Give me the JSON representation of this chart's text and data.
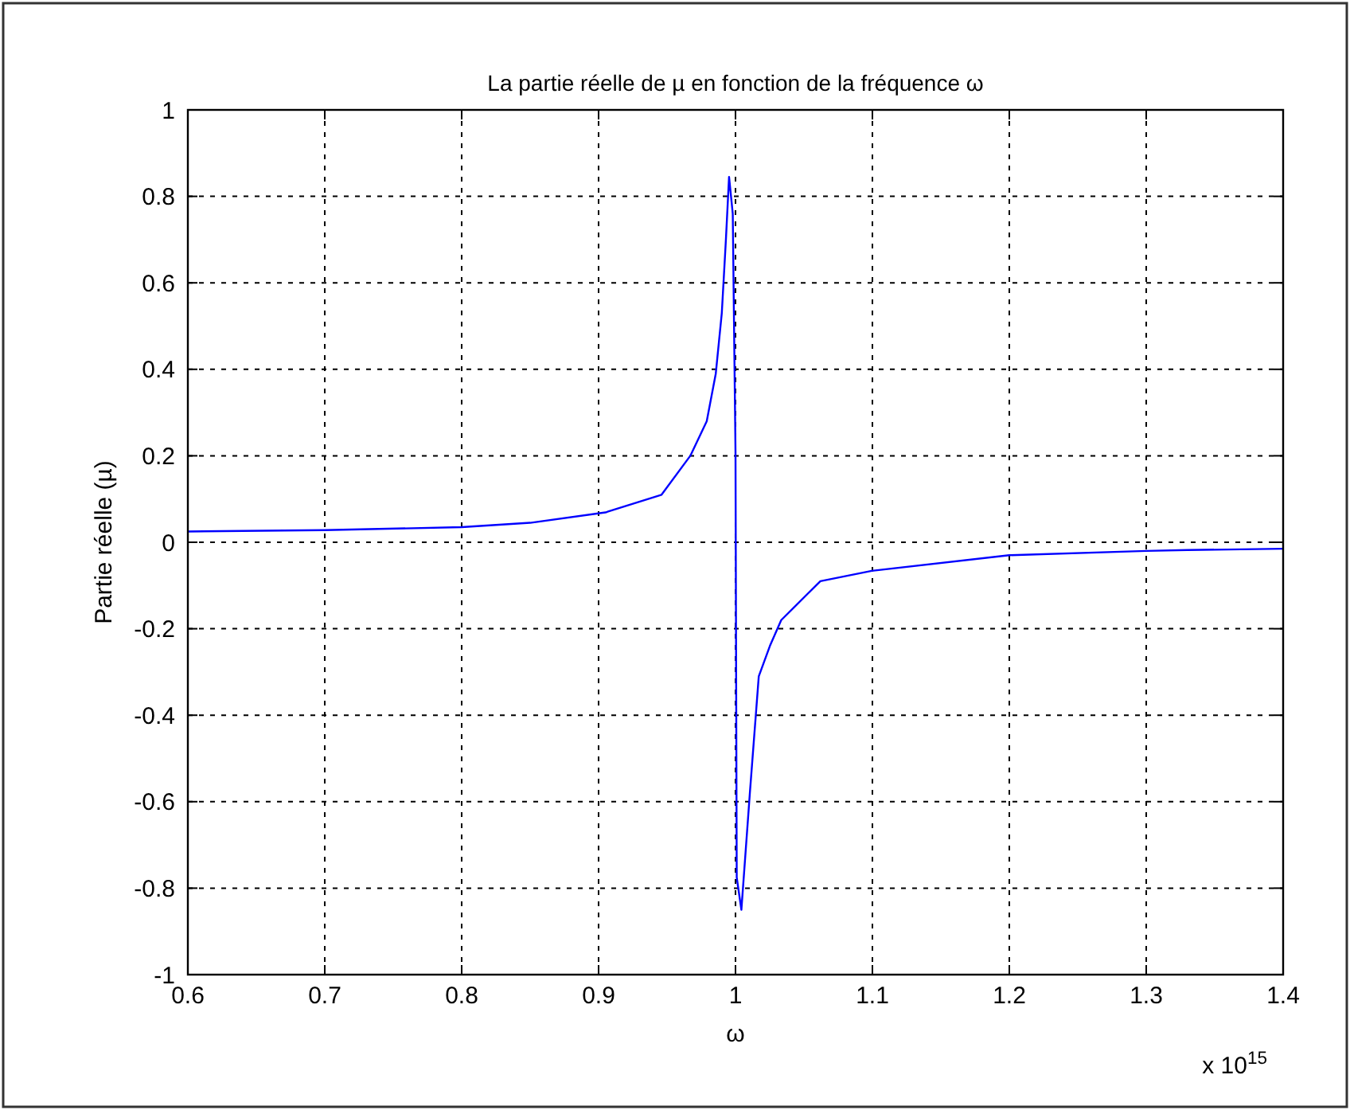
{
  "chart_data": {
    "type": "line",
    "title": "La partie réelle de µ en fonction de la fréquence ω",
    "xlabel": "ω",
    "ylabel": "Partie réelle (µ)",
    "annotations": [
      "x 10$^{15}$"
    ],
    "series": [
      {
        "color": "#0000ff",
        "x": [
          0.6,
          0.7,
          0.8,
          0.85,
          0.905,
          0.946,
          0.967,
          0.979,
          0.9856,
          0.99,
          0.993,
          0.9953,
          0.998,
          1.0,
          1.0009,
          1.0043,
          1.0105,
          1.017,
          1.0251,
          1.0334,
          1.062,
          1.0996,
          1.2,
          1.3,
          1.33,
          1.4
        ],
        "values": [
          0.025,
          0.028,
          0.035,
          0.045,
          0.069,
          0.11,
          0.2,
          0.28,
          0.39,
          0.53,
          0.7,
          0.845,
          0.76,
          0.21,
          -0.775,
          -0.85,
          -0.58,
          -0.31,
          -0.24,
          -0.18,
          -0.09,
          -0.066,
          -0.03,
          -0.02,
          -0.018,
          -0.015
        ]
      }
    ],
    "xlim": [
      0.6,
      1.4
    ],
    "xticks": [
      0.6,
      0.7,
      0.8,
      0.9,
      1,
      1.1,
      1.2,
      1.3,
      1.4
    ],
    "ylim": [
      -1,
      1
    ],
    "yticks": [
      -1,
      -0.8,
      -0.6,
      -0.4,
      -0.2,
      0,
      0.2,
      0.4,
      0.6,
      0.8,
      1
    ],
    "grid": true,
    "line_style": "solid"
  }
}
